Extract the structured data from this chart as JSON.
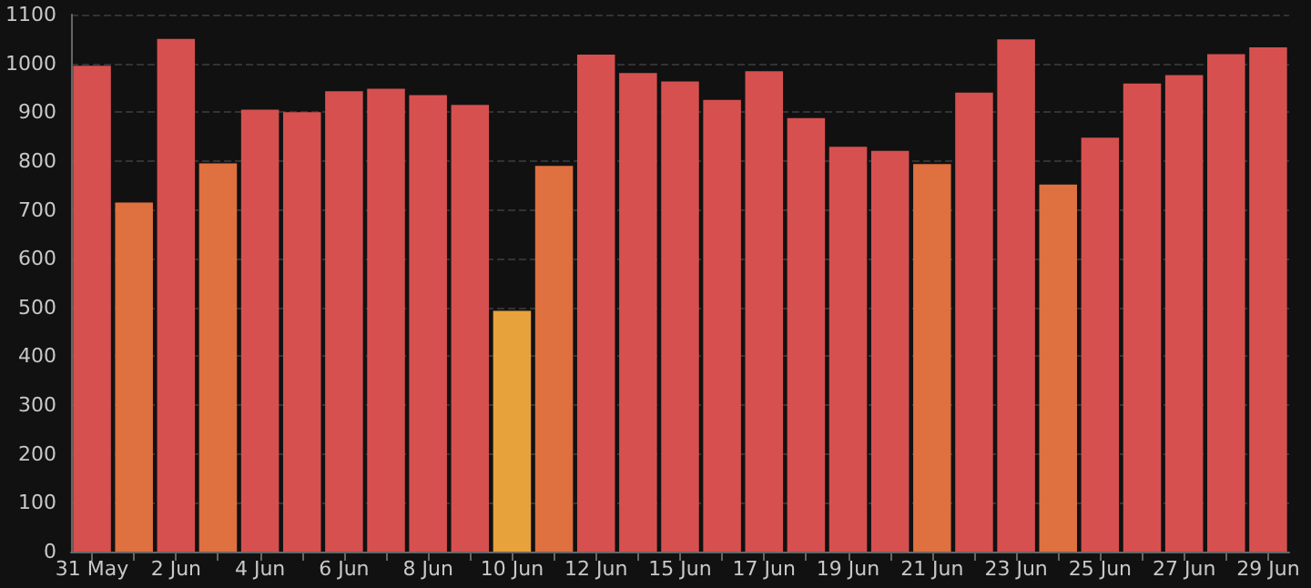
{
  "chart_data": {
    "type": "bar",
    "categories": [
      "31 May",
      null,
      "2 Jun",
      null,
      "4 Jun",
      null,
      "6 Jun",
      null,
      "8 Jun",
      null,
      "10 Jun",
      null,
      "12 Jun",
      null,
      "15 Jun",
      null,
      "17 Jun",
      null,
      "19 Jun",
      null,
      "21 Jun",
      null,
      "23 Jun",
      null,
      "25 Jun",
      null,
      "27 Jun",
      null,
      "29 Jun"
    ],
    "values": [
      995,
      715,
      1050,
      795,
      905,
      900,
      943,
      948,
      935,
      915,
      493,
      790,
      1018,
      980,
      963,
      925,
      984,
      888,
      829,
      821,
      794,
      940,
      1049,
      752,
      848,
      959,
      976,
      1019,
      1033
    ],
    "colors": [
      "#d65050",
      "#df7040",
      "#d65050",
      "#df7040",
      "#d65050",
      "#d65050",
      "#d65050",
      "#d65050",
      "#d65050",
      "#d65050",
      "#e8a23c",
      "#df7040",
      "#d65050",
      "#d65050",
      "#d65050",
      "#d65050",
      "#d65050",
      "#d65050",
      "#d65050",
      "#d65050",
      "#df7040",
      "#d65050",
      "#d65050",
      "#df7040",
      "#d65050",
      "#d65050",
      "#d65050",
      "#d65050",
      "#d65050"
    ],
    "ylim": [
      0,
      1100
    ],
    "yticks": [
      0,
      100,
      200,
      300,
      400,
      500,
      600,
      700,
      800,
      900,
      1000,
      1100
    ],
    "grid": "y"
  }
}
